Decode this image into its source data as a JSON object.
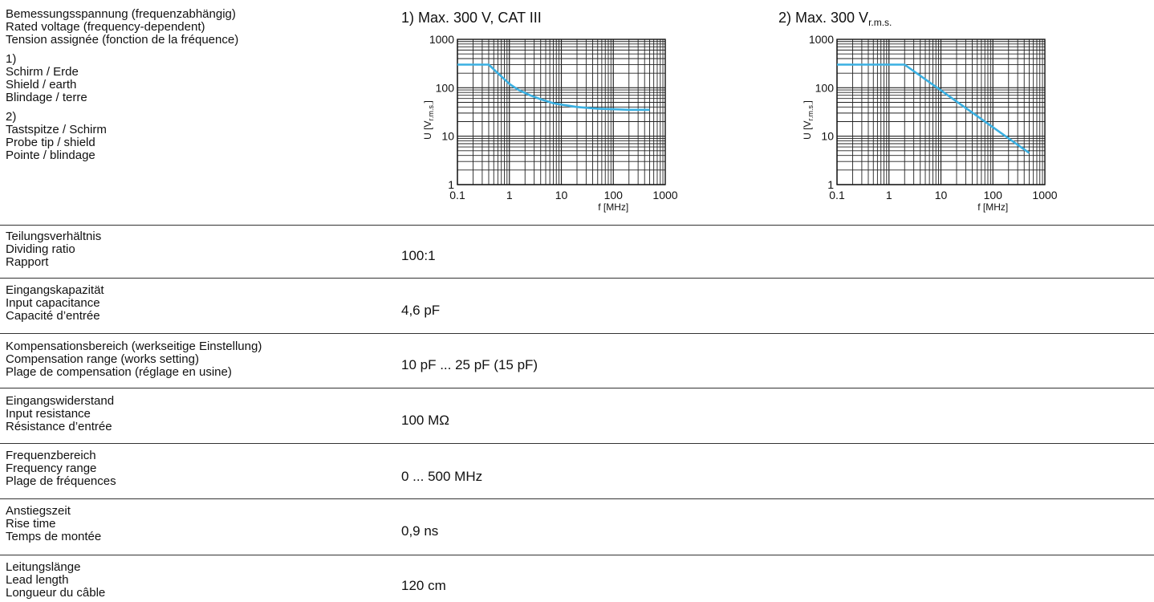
{
  "rated_voltage": {
    "label_lines": [
      "Bemessungsspannung (frequenzabhängig)",
      "Rated voltage (frequency-dependent)",
      "Tension assignée (fonction de la fréquence)"
    ],
    "group1": {
      "marker": "1)",
      "lines": [
        "Schirm / Erde",
        "Shield / earth",
        "Blindage / terre"
      ]
    },
    "group2": {
      "marker": "2)",
      "lines": [
        "Tastspitze / Schirm",
        "Probe tip / shield",
        "Pointe / blindage"
      ]
    }
  },
  "chart_data": [
    {
      "type": "line",
      "title": "1) Max. 300 V, CAT III",
      "xlabel": "f [MHz]",
      "ylabel": "U [V",
      "ylabel_sub": "r.m.s.",
      "ylabel_end": "]",
      "xscale": "log",
      "yscale": "log",
      "xlim": [
        0.1,
        1000
      ],
      "ylim": [
        1,
        1000
      ],
      "xticks": [
        "0.1",
        "1",
        "10",
        "100",
        "1000"
      ],
      "yticks": [
        "1",
        "10",
        "100",
        "1000"
      ],
      "grid": true,
      "line_color": "#3ab0e2",
      "series": [
        {
          "x": [
            0.1,
            0.4,
            0.6,
            1,
            1.5,
            2.5,
            4,
            7,
            10,
            20,
            50,
            100,
            200,
            500
          ],
          "y": [
            300,
            300,
            200,
            120,
            90,
            70,
            58,
            48,
            45,
            40,
            37,
            36,
            35,
            35
          ]
        }
      ]
    },
    {
      "type": "line",
      "title_main": "2) Max. 300 V",
      "title_sub": "r.m.s.",
      "xlabel": "f [MHz]",
      "ylabel": "U [V",
      "ylabel_sub": "r.m.s.",
      "ylabel_end": "]",
      "xscale": "log",
      "yscale": "log",
      "xlim": [
        0.1,
        1000
      ],
      "ylim": [
        1,
        1000
      ],
      "xticks": [
        "0.1",
        "1",
        "10",
        "100",
        "1000"
      ],
      "yticks": [
        "1",
        "10",
        "100",
        "1000"
      ],
      "grid": true,
      "line_color": "#3ab0e2",
      "series": [
        {
          "x": [
            0.1,
            2,
            500
          ],
          "y": [
            300,
            300,
            4.5
          ]
        }
      ]
    }
  ],
  "rows": [
    {
      "label_lines": [
        "Teilungsverhältnis",
        "Dividing ratio",
        "Rapport"
      ],
      "value": "100:1"
    },
    {
      "label_lines": [
        "Eingangskapazität",
        "Input capacitance",
        "Capacité d’entrée"
      ],
      "value": "4,6 pF"
    },
    {
      "label_lines": [
        "Kompensationsbereich (werkseitige Einstellung)",
        "Compensation range (works setting)",
        "Plage de compensation (réglage en usine)"
      ],
      "value": "10 pF ... 25 pF (15 pF)"
    },
    {
      "label_lines": [
        "Eingangswiderstand",
        "Input resistance",
        "Résistance d’entrée"
      ],
      "value": "100 MΩ"
    },
    {
      "label_lines": [
        "Frequenzbereich",
        "Frequency range",
        "Plage de fréquences"
      ],
      "value": "0 ... 500 MHz"
    },
    {
      "label_lines": [
        "Anstiegszeit",
        "Rise time",
        "Temps de montée"
      ],
      "value": "0,9 ns"
    },
    {
      "label_lines": [
        "Leitungslänge",
        "Lead length",
        "Longueur du câble"
      ],
      "value": "120 cm"
    }
  ]
}
